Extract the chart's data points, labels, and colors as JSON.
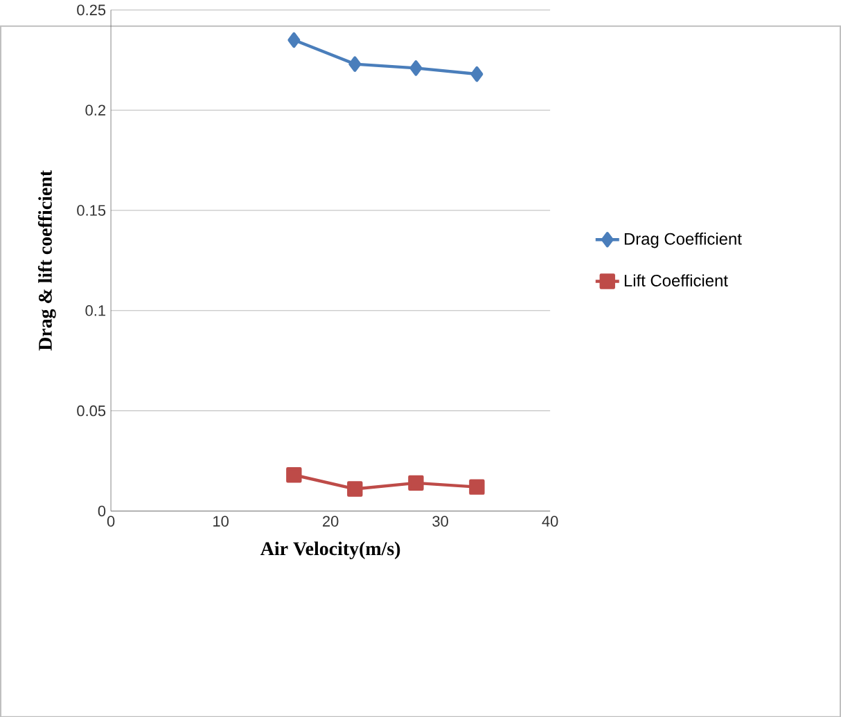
{
  "chart_data": {
    "type": "line",
    "xlabel": "Air Velocity(m/s)",
    "ylabel": "Drag & lift  coefficient",
    "series": [
      {
        "name": "Drag Coefficient",
        "color": "#4a7ebb",
        "marker": "diamond",
        "x": [
          16.67,
          22.22,
          27.78,
          33.33
        ],
        "values": [
          0.235,
          0.223,
          0.221,
          0.218
        ]
      },
      {
        "name": "Lift Coefficient",
        "color": "#be4b48",
        "marker": "square",
        "x": [
          16.67,
          22.22,
          27.78,
          33.33
        ],
        "values": [
          0.018,
          0.011,
          0.014,
          0.012
        ]
      }
    ],
    "xlim": [
      0,
      40
    ],
    "xticks": [
      0,
      10,
      20,
      30,
      40
    ],
    "ylim": [
      0,
      0.25
    ],
    "yticks": [
      0,
      0.05,
      0.1,
      0.15,
      0.2,
      0.25
    ],
    "grid": "y",
    "legend": "right",
    "line_style": "solid"
  }
}
